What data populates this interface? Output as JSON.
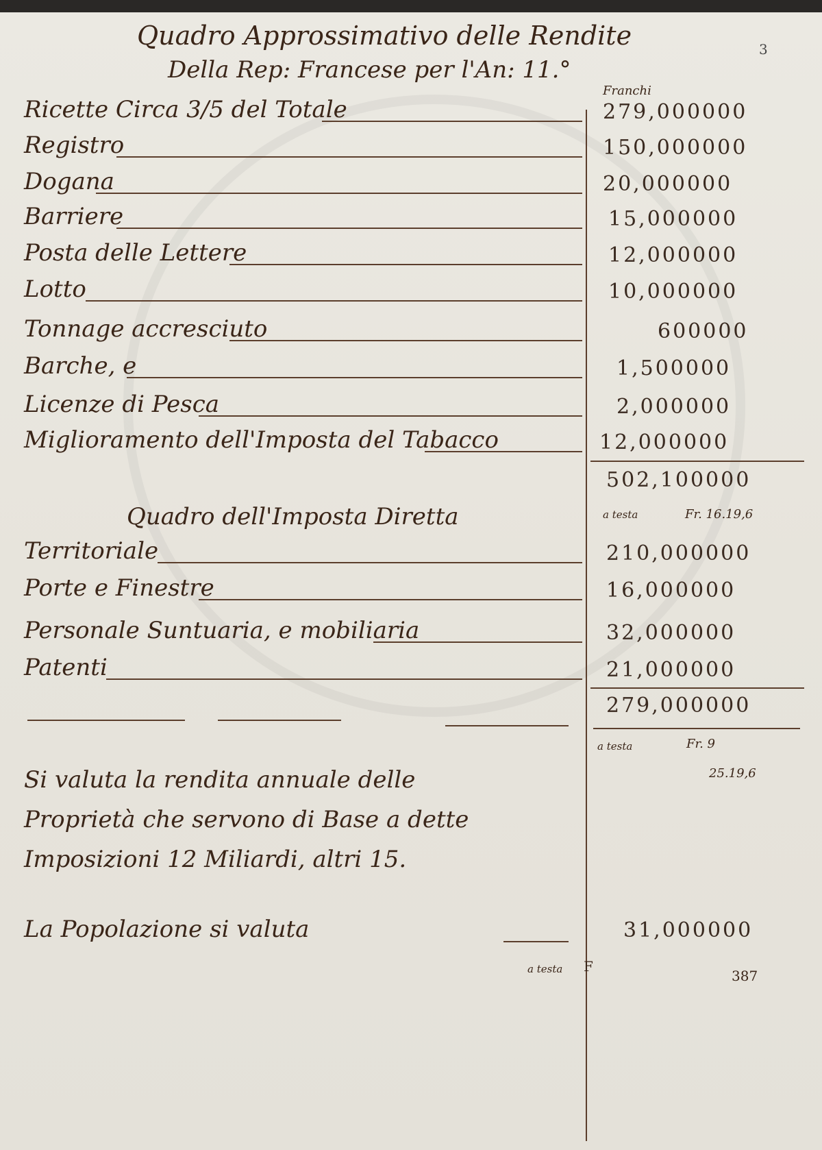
{
  "header": {
    "title_line1": "Quadro Approssimativo delle Rendite",
    "title_line2": "Della Rep: Francese per l'An: 11.°",
    "page_number": "3",
    "currency_heading": "Franchi"
  },
  "indirect_revenues": [
    {
      "label": "Ricette Circa 3/5 del Totale",
      "amount": "279,000000"
    },
    {
      "label": "Registro",
      "amount": "150,000000"
    },
    {
      "label": "Dogana",
      "amount": "20,000000"
    },
    {
      "label": "Barriere",
      "amount": "15,000000"
    },
    {
      "label": "Posta delle Lettere",
      "amount": "12,000000"
    },
    {
      "label": "Lotto",
      "amount": "10,000000"
    },
    {
      "label": "Tonnage accresciuto",
      "amount": "600000"
    },
    {
      "label": "Barche, e",
      "amount": "1,500000"
    },
    {
      "label": "Licenze di Pesca",
      "amount": "2,000000"
    },
    {
      "label": "Miglioramento dell'Imposta del Tabacco",
      "amount": "12,000000"
    }
  ],
  "indirect_total": {
    "amount": "502,100000",
    "per_head_label": "a testa",
    "per_head_value": "Fr. 16.19,6"
  },
  "direct_section_title": "Quadro dell'Imposta Diretta",
  "direct_taxes": [
    {
      "label": "Territoriale",
      "amount": "210,000000"
    },
    {
      "label": "Porte e Finestre",
      "amount": "16,000000"
    },
    {
      "label": "Personale Suntuaria, e mobiliaria",
      "amount": "32,000000"
    },
    {
      "label": "Patenti",
      "amount": "21,000000"
    }
  ],
  "direct_total": {
    "amount": "279,000000",
    "per_head_label": "a testa",
    "per_head_value": "Fr. 9",
    "per_head_value2": "25.19,6"
  },
  "notes": {
    "property_line1": "Si valuta la rendita annuale delle",
    "property_line2": "Proprietà che servono di Base a dette",
    "property_line3": "Imposizioni 12 Miliardi, altri 15.",
    "population_label": "La Popolazione si valuta",
    "population_amount": "31,000000",
    "population_per_head_label": "a testa",
    "population_per_head_mark": "F",
    "folio_note": "387"
  }
}
